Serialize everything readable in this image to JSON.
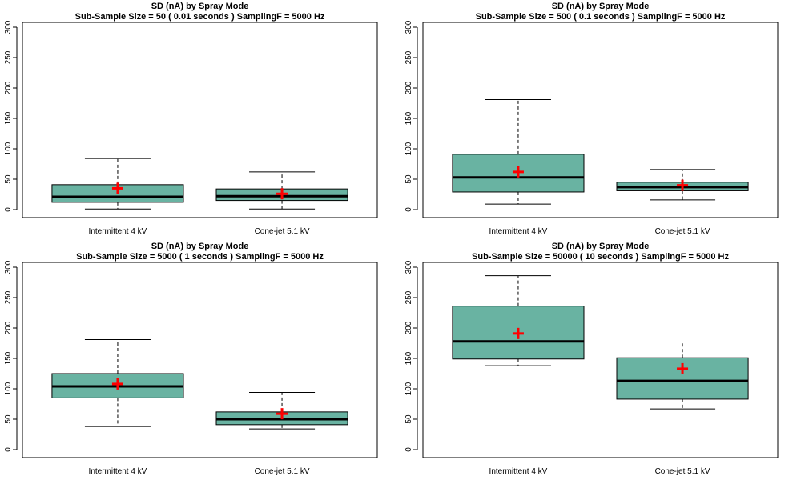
{
  "chart_data": [
    {
      "type": "box",
      "title": "SD (nA) by Spray Mode",
      "subtitle": "Sub-Sample Size =  50  ( 0.01  seconds ) SamplingF =  5000  Hz",
      "categories": [
        "Intermittent 4 kV",
        "Cone-jet 5.1 kV"
      ],
      "ylim": [
        0,
        300
      ],
      "yticks": [
        "0",
        "50",
        "100",
        "150",
        "200",
        "250",
        "300"
      ],
      "series": [
        {
          "min": 1,
          "q1": 12,
          "median": 21,
          "q3": 41,
          "max": 84,
          "mean": 35
        },
        {
          "min": 1,
          "q1": 15,
          "median": 22,
          "q3": 34,
          "max": 62,
          "mean": 26
        }
      ]
    },
    {
      "type": "box",
      "title": "SD (nA) by Spray Mode",
      "subtitle": "Sub-Sample Size =  500  ( 0.1  seconds ) SamplingF =  5000  Hz",
      "categories": [
        "Intermittent 4 kV",
        "Cone-jet 5.1 kV"
      ],
      "ylim": [
        0,
        300
      ],
      "yticks": [
        "0",
        "50",
        "100",
        "150",
        "200",
        "250",
        "300"
      ],
      "series": [
        {
          "min": 9,
          "q1": 29,
          "median": 53,
          "q3": 91,
          "max": 181,
          "mean": 62
        },
        {
          "min": 16,
          "q1": 31,
          "median": 37,
          "q3": 45,
          "max": 66,
          "mean": 40
        }
      ]
    },
    {
      "type": "box",
      "title": "SD (nA) by Spray Mode",
      "subtitle": "Sub-Sample Size =  5000  ( 1  seconds ) SamplingF =  5000  Hz",
      "categories": [
        "Intermittent 4 kV",
        "Cone-jet 5.1 kV"
      ],
      "ylim": [
        0,
        300
      ],
      "yticks": [
        "0",
        "50",
        "100",
        "150",
        "200",
        "250",
        "300"
      ],
      "series": [
        {
          "min": 38,
          "q1": 85,
          "median": 104,
          "q3": 125,
          "max": 181,
          "mean": 108
        },
        {
          "min": 34,
          "q1": 41,
          "median": 50,
          "q3": 62,
          "max": 94,
          "mean": 59
        }
      ]
    },
    {
      "type": "box",
      "title": "SD (nA) by Spray Mode",
      "subtitle": "Sub-Sample Size =  50000  ( 10  seconds ) SamplingF =  5000  Hz",
      "categories": [
        "Intermittent 4 kV",
        "Cone-jet 5.1 kV"
      ],
      "ylim": [
        0,
        300
      ],
      "yticks": [
        "0",
        "50",
        "100",
        "150",
        "200",
        "250",
        "300"
      ],
      "series": [
        {
          "min": 138,
          "q1": 149,
          "median": 178,
          "q3": 236,
          "max": 286,
          "mean": 191
        },
        {
          "min": 67,
          "q1": 83,
          "median": 113,
          "q3": 151,
          "max": 177,
          "mean": 133
        }
      ]
    }
  ],
  "colors": {
    "box_fill": "#69b3a2",
    "mean_marker": "#ff0000",
    "line": "#000000"
  }
}
